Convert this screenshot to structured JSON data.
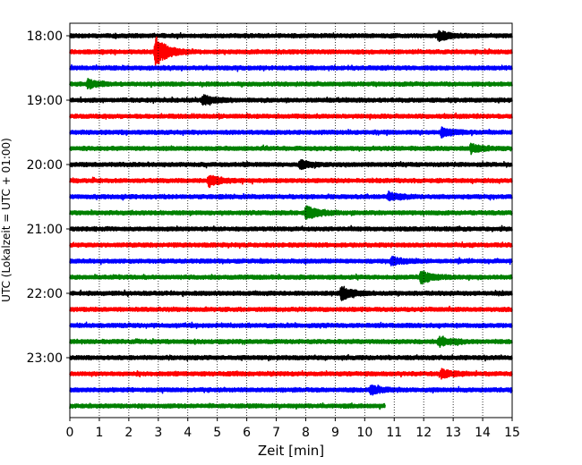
{
  "chart_data": {
    "type": "line",
    "title": "",
    "xlabel": "Zeit  [min]",
    "ylabel": "UTC (Lokalzeit = UTC + 01:00)",
    "xlim": [
      0,
      15
    ],
    "x_ticks": [
      "0",
      "1",
      "2",
      "3",
      "4",
      "5",
      "6",
      "7",
      "8",
      "9",
      "10",
      "11",
      "12",
      "13",
      "14",
      "15"
    ],
    "y_tick_labels": [
      "18:00",
      "19:00",
      "20:00",
      "21:00",
      "22:00",
      "23:00"
    ],
    "y_tick_times": [
      "18:00",
      "19:00",
      "20:00",
      "21:00",
      "22:00",
      "23:00"
    ],
    "trace_interval_min": 15,
    "grid": "vertical-dotted",
    "colors": [
      "#000000",
      "#ff0000",
      "#0000ff",
      "#008000"
    ],
    "traces": [
      {
        "start": "18:00",
        "color": "#000000",
        "end_min": 15,
        "events": [
          {
            "t": 12.5,
            "amp": 1.6
          }
        ]
      },
      {
        "start": "18:15",
        "color": "#ff0000",
        "end_min": 15,
        "events": [
          {
            "t": 2.9,
            "amp": 5.0
          }
        ]
      },
      {
        "start": "18:30",
        "color": "#0000ff",
        "end_min": 15,
        "events": []
      },
      {
        "start": "18:45",
        "color": "#008000",
        "end_min": 15,
        "events": [
          {
            "t": 0.6,
            "amp": 1.3
          }
        ]
      },
      {
        "start": "19:00",
        "color": "#000000",
        "end_min": 15,
        "events": [
          {
            "t": 4.5,
            "amp": 1.5
          }
        ]
      },
      {
        "start": "19:15",
        "color": "#ff0000",
        "end_min": 15,
        "events": []
      },
      {
        "start": "19:30",
        "color": "#0000ff",
        "end_min": 15,
        "events": [
          {
            "t": 12.6,
            "amp": 1.4
          }
        ]
      },
      {
        "start": "19:45",
        "color": "#008000",
        "end_min": 15,
        "events": [
          {
            "t": 13.6,
            "amp": 1.3
          }
        ]
      },
      {
        "start": "20:00",
        "color": "#000000",
        "end_min": 15,
        "events": [
          {
            "t": 7.8,
            "amp": 1.3
          }
        ]
      },
      {
        "start": "20:15",
        "color": "#ff0000",
        "end_min": 15,
        "events": [
          {
            "t": 4.7,
            "amp": 1.8
          }
        ]
      },
      {
        "start": "20:30",
        "color": "#0000ff",
        "end_min": 15,
        "events": [
          {
            "t": 10.8,
            "amp": 1.3
          }
        ]
      },
      {
        "start": "20:45",
        "color": "#008000",
        "end_min": 15,
        "events": [
          {
            "t": 8.0,
            "amp": 2.2
          }
        ]
      },
      {
        "start": "21:00",
        "color": "#000000",
        "end_min": 15,
        "events": []
      },
      {
        "start": "21:15",
        "color": "#ff0000",
        "end_min": 15,
        "events": []
      },
      {
        "start": "21:30",
        "color": "#0000ff",
        "end_min": 15,
        "events": [
          {
            "t": 10.9,
            "amp": 1.2
          }
        ]
      },
      {
        "start": "21:45",
        "color": "#008000",
        "end_min": 15,
        "events": [
          {
            "t": 11.9,
            "amp": 2.0
          }
        ]
      },
      {
        "start": "22:00",
        "color": "#000000",
        "end_min": 15,
        "events": [
          {
            "t": 9.2,
            "amp": 2.2
          }
        ]
      },
      {
        "start": "22:15",
        "color": "#ff0000",
        "end_min": 15,
        "events": []
      },
      {
        "start": "22:30",
        "color": "#0000ff",
        "end_min": 15,
        "events": []
      },
      {
        "start": "22:45",
        "color": "#008000",
        "end_min": 15,
        "events": [
          {
            "t": 12.5,
            "amp": 1.5
          }
        ]
      },
      {
        "start": "23:00",
        "color": "#000000",
        "end_min": 15,
        "events": []
      },
      {
        "start": "23:15",
        "color": "#ff0000",
        "end_min": 15,
        "events": [
          {
            "t": 12.6,
            "amp": 1.2
          }
        ]
      },
      {
        "start": "23:30",
        "color": "#0000ff",
        "end_min": 15,
        "events": [
          {
            "t": 10.2,
            "amp": 1.3
          }
        ]
      },
      {
        "start": "23:45",
        "color": "#008000",
        "end_min": 10.7,
        "events": []
      }
    ]
  }
}
